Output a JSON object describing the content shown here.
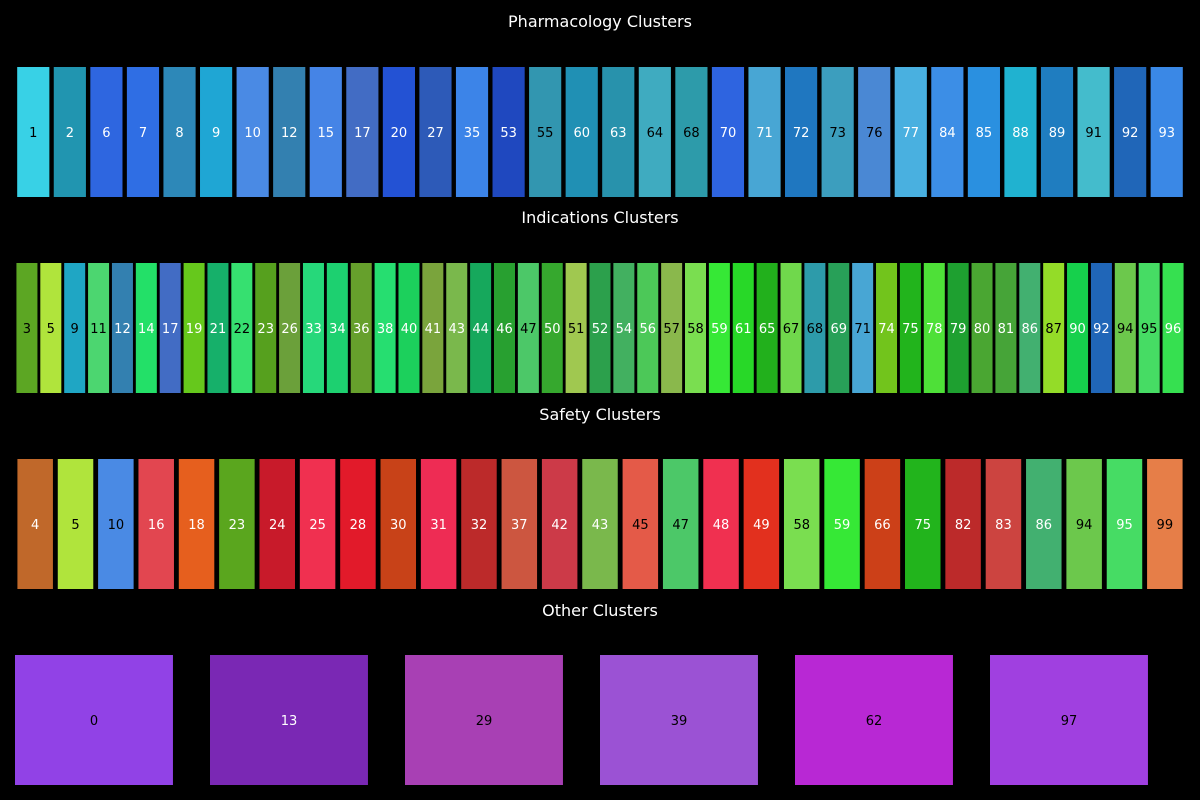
{
  "chart_data": [
    {
      "type": "table",
      "title": "Pharmacology Clusters",
      "cells": [
        {
          "label": "1",
          "color": "#38d1e6",
          "text_color": "#000000"
        },
        {
          "label": "2",
          "color": "#2195b0",
          "text_color": "#ffffff"
        },
        {
          "label": "6",
          "color": "#2e66e0",
          "text_color": "#ffffff"
        },
        {
          "label": "7",
          "color": "#2f6ee4",
          "text_color": "#ffffff"
        },
        {
          "label": "8",
          "color": "#2d88b8",
          "text_color": "#ffffff"
        },
        {
          "label": "9",
          "color": "#1fa6d4",
          "text_color": "#ffffff"
        },
        {
          "label": "10",
          "color": "#4a8ae4",
          "text_color": "#ffffff"
        },
        {
          "label": "12",
          "color": "#3380b0",
          "text_color": "#ffffff"
        },
        {
          "label": "15",
          "color": "#4584e6",
          "text_color": "#ffffff"
        },
        {
          "label": "17",
          "color": "#426cc4",
          "text_color": "#ffffff"
        },
        {
          "label": "20",
          "color": "#2352d4",
          "text_color": "#ffffff"
        },
        {
          "label": "27",
          "color": "#2d5ab8",
          "text_color": "#ffffff"
        },
        {
          "label": "35",
          "color": "#3c84e8",
          "text_color": "#ffffff"
        },
        {
          "label": "53",
          "color": "#1f48bf",
          "text_color": "#ffffff"
        },
        {
          "label": "55",
          "color": "#3296b0",
          "text_color": "#000000"
        },
        {
          "label": "60",
          "color": "#2090b4",
          "text_color": "#ffffff"
        },
        {
          "label": "63",
          "color": "#2892ac",
          "text_color": "#ffffff"
        },
        {
          "label": "64",
          "color": "#3fabc0",
          "text_color": "#000000"
        },
        {
          "label": "68",
          "color": "#2d9baa",
          "text_color": "#000000"
        },
        {
          "label": "70",
          "color": "#2e64e0",
          "text_color": "#ffffff"
        },
        {
          "label": "71",
          "color": "#48a6d4",
          "text_color": "#ffffff"
        },
        {
          "label": "72",
          "color": "#1f77c0",
          "text_color": "#ffffff"
        },
        {
          "label": "73",
          "color": "#3c9ebe",
          "text_color": "#000000"
        },
        {
          "label": "76",
          "color": "#4a88d4",
          "text_color": "#000000"
        },
        {
          "label": "77",
          "color": "#49b0e0",
          "text_color": "#ffffff"
        },
        {
          "label": "84",
          "color": "#3c8ee6",
          "text_color": "#ffffff"
        },
        {
          "label": "85",
          "color": "#2a90e0",
          "text_color": "#ffffff"
        },
        {
          "label": "88",
          "color": "#20b2d0",
          "text_color": "#ffffff"
        },
        {
          "label": "89",
          "color": "#1f7dc0",
          "text_color": "#ffffff"
        },
        {
          "label": "91",
          "color": "#44bccc",
          "text_color": "#000000"
        },
        {
          "label": "92",
          "color": "#2066b8",
          "text_color": "#ffffff"
        },
        {
          "label": "93",
          "color": "#3a88e6",
          "text_color": "#ffffff"
        }
      ]
    },
    {
      "type": "table",
      "title": "Indications Clusters",
      "cells": [
        {
          "label": "3",
          "color": "#5ca623",
          "text_color": "#000000"
        },
        {
          "label": "5",
          "color": "#b0e43c",
          "text_color": "#000000"
        },
        {
          "label": "9",
          "color": "#1fa6c4",
          "text_color": "#000000"
        },
        {
          "label": "11",
          "color": "#4cd670",
          "text_color": "#000000"
        },
        {
          "label": "12",
          "color": "#3380b0",
          "text_color": "#ffffff"
        },
        {
          "label": "14",
          "color": "#23e068",
          "text_color": "#ffffff"
        },
        {
          "label": "17",
          "color": "#426cc4",
          "text_color": "#ffffff"
        },
        {
          "label": "19",
          "color": "#66c81c",
          "text_color": "#ffffff"
        },
        {
          "label": "21",
          "color": "#16b06a",
          "text_color": "#ffffff"
        },
        {
          "label": "22",
          "color": "#36e070",
          "text_color": "#000000"
        },
        {
          "label": "23",
          "color": "#56a01e",
          "text_color": "#ffffff"
        },
        {
          "label": "26",
          "color": "#6ba03a",
          "text_color": "#ffffff"
        },
        {
          "label": "33",
          "color": "#26d87a",
          "text_color": "#ffffff"
        },
        {
          "label": "34",
          "color": "#1dd070",
          "text_color": "#ffffff"
        },
        {
          "label": "36",
          "color": "#66a02c",
          "text_color": "#ffffff"
        },
        {
          "label": "38",
          "color": "#26de70",
          "text_color": "#ffffff"
        },
        {
          "label": "40",
          "color": "#1cd05c",
          "text_color": "#ffffff"
        },
        {
          "label": "41",
          "color": "#7aa43c",
          "text_color": "#ffffff"
        },
        {
          "label": "43",
          "color": "#7ab84c",
          "text_color": "#ffffff"
        },
        {
          "label": "44",
          "color": "#16a85c",
          "text_color": "#ffffff"
        },
        {
          "label": "46",
          "color": "#28a030",
          "text_color": "#ffffff"
        },
        {
          "label": "47",
          "color": "#4cc868",
          "text_color": "#000000"
        },
        {
          "label": "50",
          "color": "#36a82e",
          "text_color": "#ffffff"
        },
        {
          "label": "51",
          "color": "#a0c850",
          "text_color": "#000000"
        },
        {
          "label": "52",
          "color": "#2ca04c",
          "text_color": "#ffffff"
        },
        {
          "label": "54",
          "color": "#42b060",
          "text_color": "#ffffff"
        },
        {
          "label": "56",
          "color": "#4cc858",
          "text_color": "#ffffff"
        },
        {
          "label": "57",
          "color": "#8ab84c",
          "text_color": "#000000"
        },
        {
          "label": "58",
          "color": "#7ade50",
          "text_color": "#000000"
        },
        {
          "label": "59",
          "color": "#36e836",
          "text_color": "#ffffff"
        },
        {
          "label": "61",
          "color": "#28d828",
          "text_color": "#ffffff"
        },
        {
          "label": "65",
          "color": "#22b01c",
          "text_color": "#ffffff"
        },
        {
          "label": "67",
          "color": "#70d84c",
          "text_color": "#000000"
        },
        {
          "label": "68",
          "color": "#2d9baa",
          "text_color": "#000000"
        },
        {
          "label": "69",
          "color": "#28a058",
          "text_color": "#ffffff"
        },
        {
          "label": "71",
          "color": "#48a6d4",
          "text_color": "#000000"
        },
        {
          "label": "74",
          "color": "#72c41c",
          "text_color": "#ffffff"
        },
        {
          "label": "75",
          "color": "#22b41c",
          "text_color": "#ffffff"
        },
        {
          "label": "78",
          "color": "#4ee038",
          "text_color": "#ffffff"
        },
        {
          "label": "79",
          "color": "#1ea030",
          "text_color": "#ffffff"
        },
        {
          "label": "80",
          "color": "#4aa632",
          "text_color": "#ffffff"
        },
        {
          "label": "81",
          "color": "#46a438",
          "text_color": "#ffffff"
        },
        {
          "label": "86",
          "color": "#42b070",
          "text_color": "#ffffff"
        },
        {
          "label": "87",
          "color": "#94dc28",
          "text_color": "#000000"
        },
        {
          "label": "90",
          "color": "#16d04c",
          "text_color": "#ffffff"
        },
        {
          "label": "92",
          "color": "#2066b8",
          "text_color": "#ffffff"
        },
        {
          "label": "94",
          "color": "#6cc84c",
          "text_color": "#000000"
        },
        {
          "label": "95",
          "color": "#46dc64",
          "text_color": "#000000"
        },
        {
          "label": "96",
          "color": "#36e050",
          "text_color": "#ffffff"
        }
      ]
    },
    {
      "type": "table",
      "title": "Safety Clusters",
      "cells": [
        {
          "label": "4",
          "color": "#c0682a",
          "text_color": "#ffffff"
        },
        {
          "label": "5",
          "color": "#b0e43c",
          "text_color": "#000000"
        },
        {
          "label": "10",
          "color": "#4a8ae4",
          "text_color": "#000000"
        },
        {
          "label": "16",
          "color": "#e24650",
          "text_color": "#ffffff"
        },
        {
          "label": "18",
          "color": "#e65f1e",
          "text_color": "#ffffff"
        },
        {
          "label": "23",
          "color": "#5aa61e",
          "text_color": "#ffffff"
        },
        {
          "label": "24",
          "color": "#c81a2a",
          "text_color": "#ffffff"
        },
        {
          "label": "25",
          "color": "#f03050",
          "text_color": "#ffffff"
        },
        {
          "label": "28",
          "color": "#e21a2a",
          "text_color": "#ffffff"
        },
        {
          "label": "30",
          "color": "#c84218",
          "text_color": "#ffffff"
        },
        {
          "label": "31",
          "color": "#ee2c54",
          "text_color": "#ffffff"
        },
        {
          "label": "32",
          "color": "#bc2a2a",
          "text_color": "#ffffff"
        },
        {
          "label": "37",
          "color": "#cc5640",
          "text_color": "#ffffff"
        },
        {
          "label": "42",
          "color": "#cc3a48",
          "text_color": "#ffffff"
        },
        {
          "label": "43",
          "color": "#7ab84c",
          "text_color": "#ffffff"
        },
        {
          "label": "45",
          "color": "#e45a48",
          "text_color": "#000000"
        },
        {
          "label": "47",
          "color": "#4cc868",
          "text_color": "#000000"
        },
        {
          "label": "48",
          "color": "#f03050",
          "text_color": "#ffffff"
        },
        {
          "label": "49",
          "color": "#e2301e",
          "text_color": "#ffffff"
        },
        {
          "label": "58",
          "color": "#7ade50",
          "text_color": "#000000"
        },
        {
          "label": "59",
          "color": "#36e836",
          "text_color": "#ffffff"
        },
        {
          "label": "66",
          "color": "#cc4018",
          "text_color": "#ffffff"
        },
        {
          "label": "75",
          "color": "#22b41c",
          "text_color": "#ffffff"
        },
        {
          "label": "82",
          "color": "#bc2a2a",
          "text_color": "#ffffff"
        },
        {
          "label": "83",
          "color": "#cc4440",
          "text_color": "#ffffff"
        },
        {
          "label": "86",
          "color": "#42b070",
          "text_color": "#ffffff"
        },
        {
          "label": "94",
          "color": "#6cc84c",
          "text_color": "#000000"
        },
        {
          "label": "95",
          "color": "#46dc64",
          "text_color": "#ffffff"
        },
        {
          "label": "99",
          "color": "#e67e48",
          "text_color": "#000000"
        }
      ]
    },
    {
      "type": "table",
      "title": "Other Clusters",
      "cells": [
        {
          "label": "0",
          "color": "#9142e6",
          "text_color": "#000000"
        },
        {
          "label": "13",
          "color": "#7a28b4",
          "text_color": "#ffffff"
        },
        {
          "label": "29",
          "color": "#a840b4",
          "text_color": "#000000"
        },
        {
          "label": "39",
          "color": "#9b52d4",
          "text_color": "#000000"
        },
        {
          "label": "62",
          "color": "#b828d4",
          "text_color": "#000000"
        },
        {
          "label": "97",
          "color": "#a040e0",
          "text_color": "#000000"
        }
      ]
    }
  ]
}
